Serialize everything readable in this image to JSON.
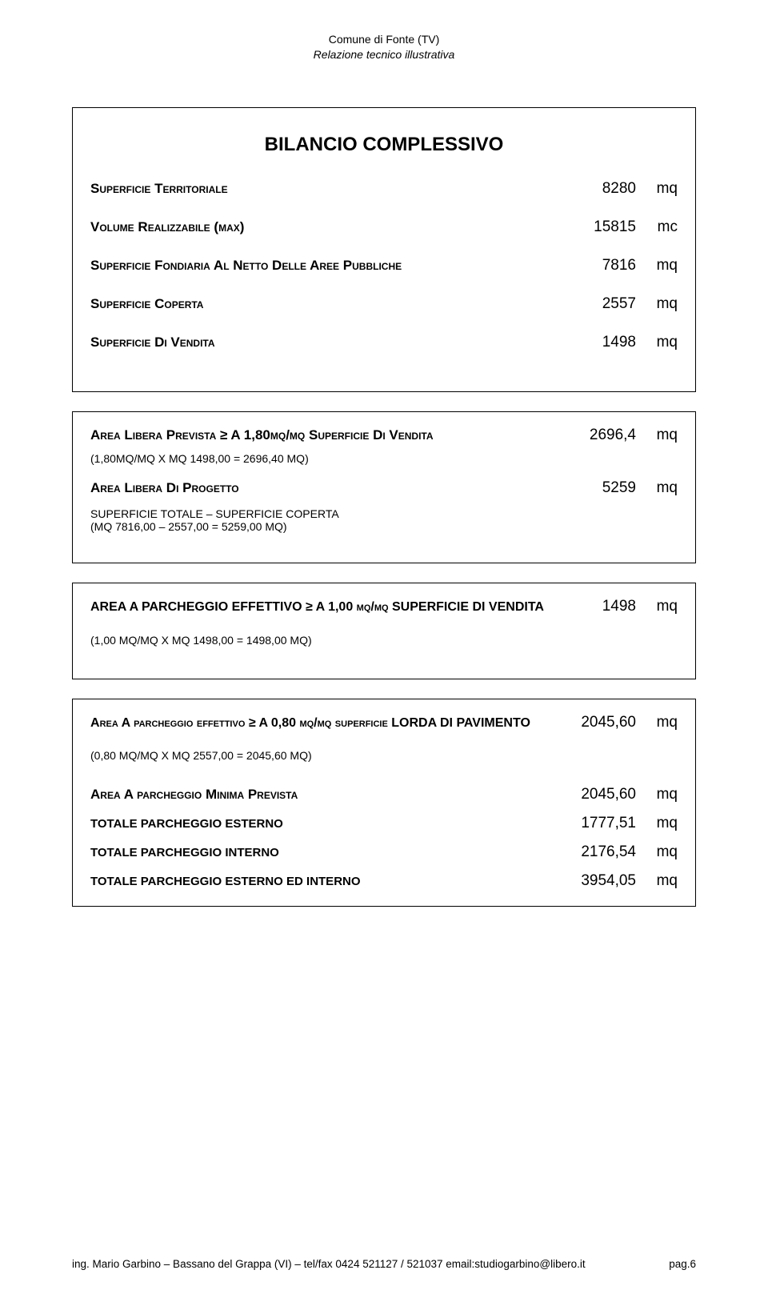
{
  "header": {
    "line1": "Comune  di  Fonte (TV)",
    "line2": "Relazione tecnico illustrativa"
  },
  "title": "BILANCIO COMPLESSIVO",
  "box1": {
    "rows": [
      {
        "label_html": "S<span class='sc'>uperficie</span> T<span class='sc'>erritoriale</span>",
        "value": "8280",
        "unit": "mq",
        "bold": true
      },
      {
        "label_html": "V<span class='sc'>olume</span> R<span class='sc'>ealizzabile</span> (<span class='sc'>max</span>)",
        "value": "15815",
        "unit": "mc",
        "bold": true
      },
      {
        "label_html": "S<span class='sc'>uperficie</span> F<span class='sc'>ondiaria</span> A<span class='sc'>l</span> N<span class='sc'>etto</span> D<span class='sc'>elle</span> A<span class='sc'>ree</span> P<span class='sc'>ubbliche</span>",
        "value": "7816",
        "unit": "mq",
        "bold": true
      },
      {
        "label_html": "S<span class='sc'>uperficie</span> C<span class='sc'>operta</span>",
        "value": "2557",
        "unit": "mq",
        "bold": true
      },
      {
        "label_html": "S<span class='sc'>uperficie</span> D<span class='sc'>i</span> V<span class='sc'>endita</span>",
        "value": "1498",
        "unit": "mq",
        "bold": true
      }
    ]
  },
  "box2": {
    "r1": {
      "label_html": "A<span class='sc'>rea</span> L<span class='sc'>ibera</span> P<span class='sc'>revista</span> ≥ A 1,80<span class='sc'>mq/mq</span> S<span class='sc'>uperficie</span> D<span class='sc'>i</span> V<span class='sc'>endita</span>",
      "value": "2696,4",
      "unit": "mq"
    },
    "f1": "(1,80MQ/MQ X MQ 1498,00 = 2696,40 MQ)",
    "r2": {
      "label_html": "A<span class='sc'>rea</span> L<span class='sc'>ibera</span> D<span class='sc'>i</span> P<span class='sc'>rogetto</span>",
      "value": "5259",
      "unit": "mq"
    },
    "note1": "SUPERFICIE TOTALE – SUPERFICIE COPERTA",
    "note2": "(MQ 7816,00 – 2557,00 = 5259,00 MQ)"
  },
  "box3": {
    "r1": {
      "label_html": "AREA A PARCHEGGIO EFFETTIVO ≥ A 1,00 <span class='sc'>mq/mq</span> SUPERFICIE DI VENDITA",
      "value": "1498",
      "unit": "mq"
    },
    "f1": "(1,00 MQ/MQ X MQ 1498,00 = 1498,00 MQ)"
  },
  "box4": {
    "r1": {
      "label_html": "A<span class='sc'>rea</span> A <span class='sc'>parcheggio</span> <span class='sc'>effettivo</span> ≥ A 0,80 <span class='sc'>mq/mq</span> <span class='sc'>superficie</span> LORDA DI PAVIMENTO",
      "value": "2045,60",
      "unit": "mq"
    },
    "f1": "(0,80 MQ/MQ X MQ 2557,00 = 2045,60 MQ)",
    "r2": {
      "label_html": "A<span class='sc'>rea</span> A <span class='sc'>parcheggio</span> M<span class='sc'>inima</span> P<span class='sc'>revista</span>",
      "value": "2045,60",
      "unit": "mq"
    },
    "r3": {
      "label": "TOTALE PARCHEGGIO ESTERNO",
      "value": "1777,51",
      "unit": "mq"
    },
    "r4": {
      "label": "TOTALE PARCHEGGIO INTERNO",
      "value": "2176,54",
      "unit": "mq"
    },
    "r5": {
      "label": "TOTALE PARCHEGGIO ESTERNO ED INTERNO",
      "value": "3954,05",
      "unit": "mq"
    }
  },
  "footer": {
    "left": "ing. Mario Garbino – Bassano del Grappa (VI) – tel/fax 0424 521127 / 521037   email:studiogarbino@libero.it",
    "right": "pag.6"
  }
}
